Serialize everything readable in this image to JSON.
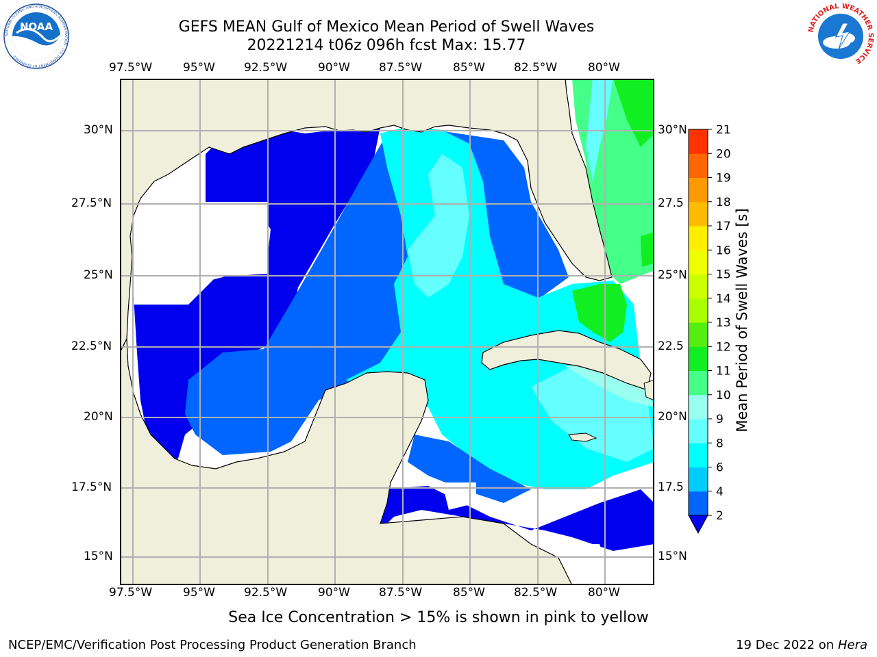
{
  "header": {
    "title_line1": "GEFS MEAN Gulf of Mexico Mean Period of Swell Waves",
    "title_line2": "20221214 t06z 096h fcst   Max: 15.77"
  },
  "logos": {
    "noara": "NOAA",
    "noaa_ring": "NATIONAL OCEANIC AND ATMOSPHERIC ADMINISTRATION · U.S. DEPARTMENT OF COMMERCE",
    "nws_ring": "NATIONAL WEATHER SERVICE"
  },
  "map": {
    "lon_labels": [
      "97.5°W",
      "95°W",
      "92.5°W",
      "90°W",
      "87.5°W",
      "85°W",
      "82.5°W",
      "80°W"
    ],
    "lat_labels_left": [
      "30°N",
      "27.5°N",
      "25°N",
      "22.5°N",
      "20°N",
      "17.5°N",
      "15°N"
    ],
    "lat_labels_right": [
      "30°N",
      "27.5",
      "25°N",
      "22.5",
      "20°N",
      "17.5",
      "15°N"
    ],
    "land_color": "#efefdc",
    "grid_color": "#b0b0b0"
  },
  "colorbar": {
    "label": "Mean Period of Swell Waves [s]",
    "ticks": [
      "2",
      "4",
      "6",
      "8",
      "9",
      "10",
      "11",
      "12",
      "13",
      "14",
      "15",
      "16",
      "17",
      "18",
      "19",
      "20",
      "21"
    ],
    "colors": [
      "#0066ff",
      "#00ccff",
      "#00ffff",
      "#66ffff",
      "#99ffee",
      "#44ff88",
      "#11ee22",
      "#55ee11",
      "#aaff00",
      "#ccff00",
      "#eeff00",
      "#ffee00",
      "#ffbb00",
      "#ff9900",
      "#ff6600",
      "#ff3300",
      "#ff0000"
    ],
    "extend_color": "#0000ee"
  },
  "footer": {
    "ice_note": "Sea Ice Concentration > 15% is shown in pink to yellow",
    "credit": "NCEP/EMC/Verification Post Processing Product Generation Branch",
    "date": "19 Dec 2022 on",
    "machine": "Hera"
  }
}
